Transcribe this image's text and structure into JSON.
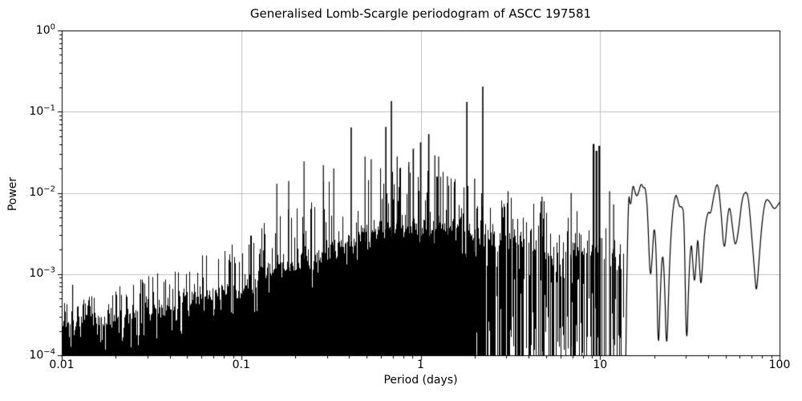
{
  "figure": {
    "title": "Generalised Lomb-Scargle periodogram of ASCC 197581",
    "xlabel": "Period (days)",
    "ylabel": "Power"
  },
  "chart_data": {
    "type": "line",
    "title": "Generalised Lomb-Scargle periodogram of ASCC 197581",
    "xlabel": "Period (days)",
    "ylabel": "Power",
    "xscale": "log",
    "yscale": "log",
    "xlim": [
      0.01,
      100
    ],
    "ylim": [
      0.0001,
      1
    ],
    "grid": true,
    "legend": false,
    "grid_color": "#b0b0b0",
    "line_color": "#000000",
    "background_color": "#ffffff",
    "x_ticks": [
      {
        "label": "0.01",
        "value": 0.01
      },
      {
        "label": "0.1",
        "value": 0.1
      },
      {
        "label": "1",
        "value": 1
      },
      {
        "label": "10",
        "value": 10
      },
      {
        "label": "100",
        "value": 100
      }
    ],
    "y_ticks": [
      {
        "base": "10",
        "exponent": "0",
        "value": 1
      },
      {
        "base": "10",
        "exponent": "−1",
        "value": 0.1
      },
      {
        "base": "10",
        "exponent": "−2",
        "value": 0.01
      },
      {
        "base": "10",
        "exponent": "−3",
        "value": 0.001
      },
      {
        "base": "10",
        "exponent": "−4",
        "value": 0.0001
      }
    ],
    "main_peaks": [
      [
        0.0115,
        0.00074
      ],
      [
        0.158,
        0.013
      ],
      [
        0.184,
        0.014
      ],
      [
        0.224,
        0.0245
      ],
      [
        0.287,
        0.022
      ],
      [
        0.328,
        0.02
      ],
      [
        0.41,
        0.064
      ],
      [
        0.49,
        0.028
      ],
      [
        0.53,
        0.026
      ],
      [
        0.64,
        0.065
      ],
      [
        0.687,
        0.135
      ],
      [
        0.74,
        0.028
      ],
      [
        0.86,
        0.024
      ],
      [
        0.91,
        0.035
      ],
      [
        1.0,
        0.042
      ],
      [
        1.11,
        0.053
      ],
      [
        1.2,
        0.029
      ],
      [
        1.26,
        0.028
      ],
      [
        1.41,
        0.016
      ],
      [
        1.54,
        0.012
      ],
      [
        1.81,
        0.132
      ],
      [
        2.0,
        0.015
      ],
      [
        2.22,
        0.204
      ],
      [
        3.07,
        0.0105
      ],
      [
        4.75,
        0.009
      ],
      [
        6.9,
        0.01
      ],
      [
        9.2,
        0.04
      ],
      [
        9.55,
        0.033
      ],
      [
        9.9,
        0.038
      ],
      [
        11.3,
        0.0105
      ],
      [
        11.9,
        0.0072
      ]
    ],
    "noise_envelope": [
      [
        -2.0,
        -3.6,
        -3.33
      ],
      [
        -1.8,
        -3.55,
        -3.2
      ],
      [
        -1.6,
        -3.47,
        -3.05
      ],
      [
        -1.4,
        -3.39,
        -2.9
      ],
      [
        -1.2,
        -3.27,
        -2.75
      ],
      [
        -1.0,
        -3.11,
        -2.5
      ],
      [
        -0.8,
        -2.94,
        -2.2
      ],
      [
        -0.6,
        -2.75,
        -1.9
      ],
      [
        -0.45,
        -2.62,
        -1.75
      ],
      [
        -0.3,
        -2.5,
        -1.65
      ],
      [
        -0.15,
        -2.42,
        -1.6
      ],
      [
        0.0,
        -2.35,
        -1.62
      ],
      [
        0.2,
        -2.38,
        -1.8
      ],
      [
        0.4,
        -2.5,
        -1.95
      ],
      [
        0.6,
        -2.58,
        -2.05
      ],
      [
        0.8,
        -2.65,
        -2.15
      ],
      [
        0.95,
        -2.72,
        -2.3
      ],
      [
        1.13,
        -2.8,
        -2.45
      ]
    ],
    "dense_region": {
      "period_range": [
        0.01,
        13.5
      ],
      "gap_start_log10_period": 0.3,
      "max_gap_probability": 0.5,
      "seed": 1337
    },
    "smooth_curve": [
      [
        13.9,
        8e-05
      ],
      [
        14.3,
        0.0125
      ],
      [
        14.8,
        0.0061
      ],
      [
        15.2,
        0.0131
      ],
      [
        15.6,
        0.0106
      ],
      [
        16.0,
        0.0088
      ],
      [
        16.5,
        0.0105
      ],
      [
        16.9,
        0.0133
      ],
      [
        17.4,
        0.0114
      ],
      [
        17.9,
        0.0118
      ],
      [
        18.4,
        0.006
      ],
      [
        19.0,
        0.00079
      ],
      [
        19.5,
        0.0015
      ],
      [
        20.0,
        0.0045
      ],
      [
        20.6,
        0.0018
      ],
      [
        21.1,
        8e-05
      ],
      [
        21.7,
        0.0007
      ],
      [
        22.3,
        0.0021
      ],
      [
        22.9,
        0.0008
      ],
      [
        23.5,
        8e-05
      ],
      [
        24.3,
        0.0012
      ],
      [
        25.2,
        0.0053
      ],
      [
        26.3,
        0.0099
      ],
      [
        27.0,
        0.0085
      ],
      [
        27.7,
        0.0066
      ],
      [
        28.6,
        0.0069
      ],
      [
        29.4,
        0.0055
      ],
      [
        30.3,
        8e-05
      ],
      [
        31.2,
        0.0009
      ],
      [
        32.2,
        0.0028
      ],
      [
        32.9,
        0.0013
      ],
      [
        33.6,
        0.00072
      ],
      [
        34.3,
        0.0014
      ],
      [
        35.0,
        0.0032
      ],
      [
        35.7,
        0.0014
      ],
      [
        36.5,
        0.00063
      ],
      [
        37.4,
        0.0016
      ],
      [
        38.4,
        0.0038
      ],
      [
        40.0,
        0.0061
      ],
      [
        41.3,
        0.0053
      ],
      [
        43.0,
        0.0094
      ],
      [
        45.3,
        0.0145
      ],
      [
        47.2,
        0.0061
      ],
      [
        49.2,
        0.0016
      ],
      [
        51.3,
        0.0053
      ],
      [
        52.9,
        0.0072
      ],
      [
        55.1,
        0.0032
      ],
      [
        56.8,
        0.0021
      ],
      [
        59.2,
        0.0035
      ],
      [
        61.7,
        0.0084
      ],
      [
        64.3,
        0.0105
      ],
      [
        67.0,
        0.0094
      ],
      [
        69.8,
        0.0032
      ],
      [
        72.8,
        0.001
      ],
      [
        74.3,
        0.00055
      ],
      [
        76.6,
        0.0013
      ],
      [
        78.9,
        0.0032
      ],
      [
        81.4,
        0.0061
      ],
      [
        84.0,
        0.0084
      ],
      [
        87.0,
        0.0081
      ],
      [
        90.0,
        0.0072
      ],
      [
        93.0,
        0.0063
      ],
      [
        96.0,
        0.0066
      ],
      [
        98.5,
        0.0073
      ],
      [
        100,
        0.0076
      ]
    ]
  }
}
